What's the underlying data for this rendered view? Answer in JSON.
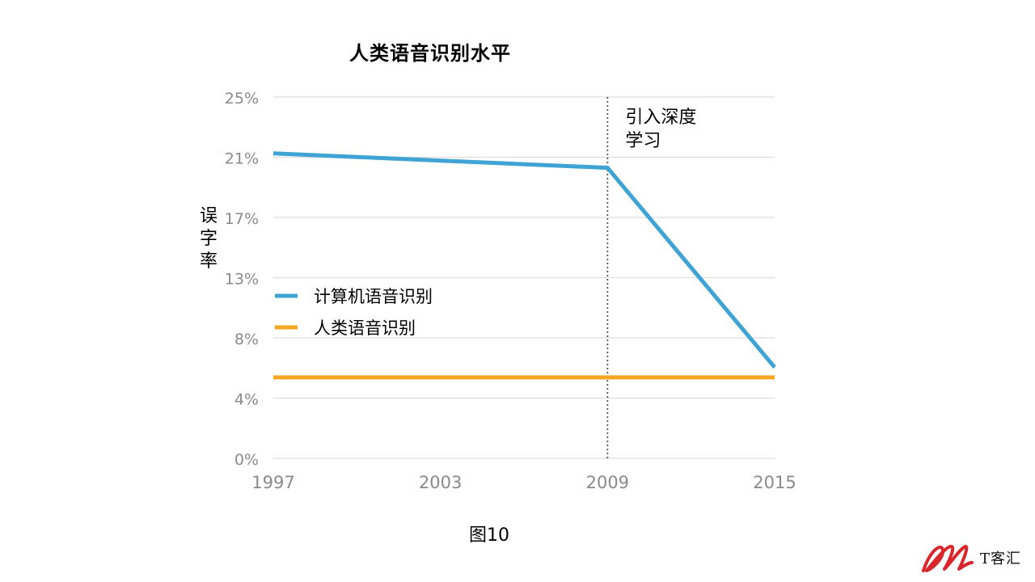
{
  "chart_data": {
    "type": "line",
    "title": "人类语音识别水平",
    "ylabel": "误字率",
    "xlabel": "",
    "x_ticks": [
      "1997",
      "2003",
      "2009",
      "2015"
    ],
    "y_ticks": [
      "0%",
      "4%",
      "8%",
      "13%",
      "17%",
      "21%",
      "25%"
    ],
    "ylim": [
      0,
      25
    ],
    "xlim": [
      1997,
      2015
    ],
    "grid": "horizontal",
    "series": [
      {
        "name": "计算机语音识别",
        "color": "#3fa3d4",
        "points": [
          {
            "x": 1997,
            "y": 21.1
          },
          {
            "x": 2009,
            "y": 20.1
          },
          {
            "x": 2015,
            "y": 6.3
          }
        ]
      },
      {
        "name": "人类语音识别",
        "color": "#f5a623",
        "points": [
          {
            "x": 1997,
            "y": 5.6
          },
          {
            "x": 2015,
            "y": 5.6
          }
        ]
      }
    ],
    "vline": {
      "x": 2009,
      "style": "dotted"
    },
    "annotation": {
      "x": 2009,
      "lines": [
        "引入深度",
        "学习"
      ]
    },
    "legend_placement": "center-left"
  },
  "caption": "图10",
  "logo_text": "T客汇",
  "colors": {
    "grid": "#dedede",
    "tick": "#8a8a8a",
    "logo": "#d9262c"
  }
}
